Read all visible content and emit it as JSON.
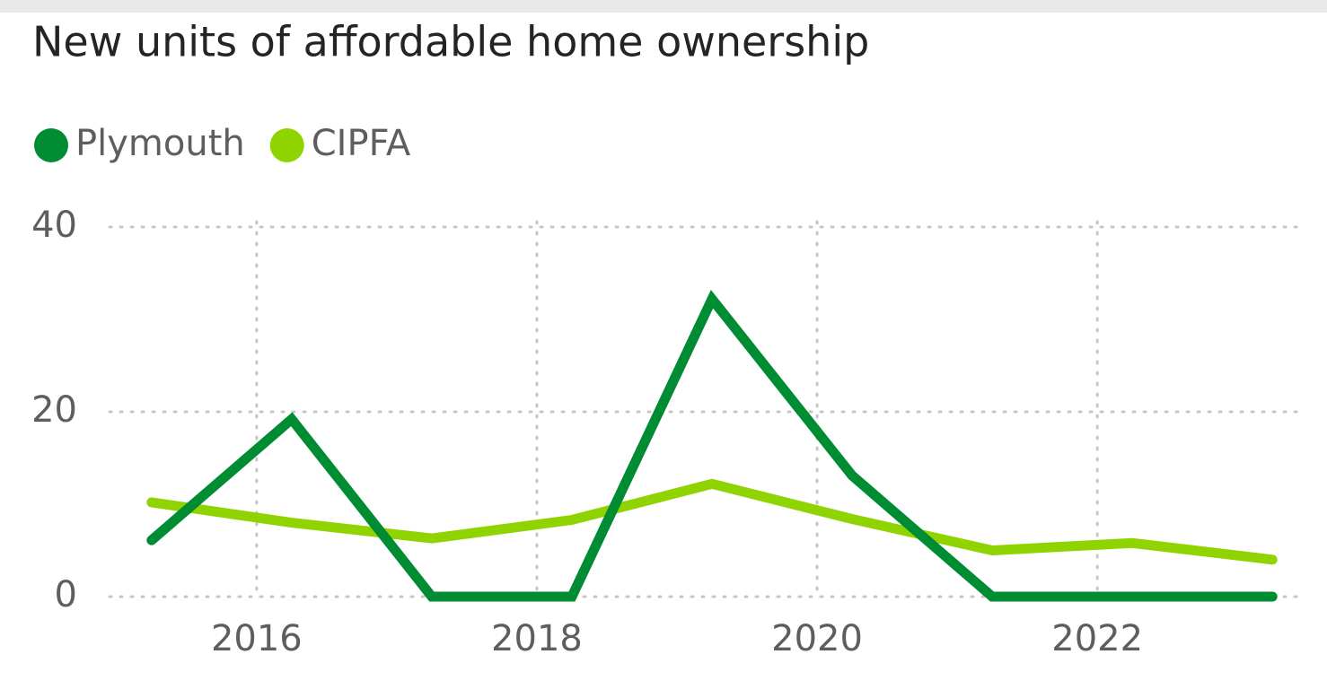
{
  "chart_data": {
    "type": "line",
    "title": "New units of affordable home ownership",
    "x": [
      2015.25,
      2016.25,
      2017.25,
      2018.25,
      2019.25,
      2020.25,
      2021.25,
      2022.25,
      2023.25
    ],
    "series": [
      {
        "name": "Plymouth",
        "color": "#008c32",
        "values": [
          6.1,
          19.2,
          0,
          0,
          32.2,
          13.1,
          0,
          0,
          0
        ]
      },
      {
        "name": "CIPFA",
        "color": "#8fd400",
        "values": [
          10.2,
          8.0,
          6.3,
          8.3,
          12.2,
          8.4,
          5.0,
          5.8,
          4.0
        ]
      }
    ],
    "xlim": [
      2014.95,
      2023.46
    ],
    "xticks": [
      2016,
      2018,
      2020,
      2022
    ],
    "ylim": [
      0,
      40
    ],
    "yticks": [
      0,
      20,
      40
    ],
    "grid": true,
    "legend": "top-left"
  }
}
